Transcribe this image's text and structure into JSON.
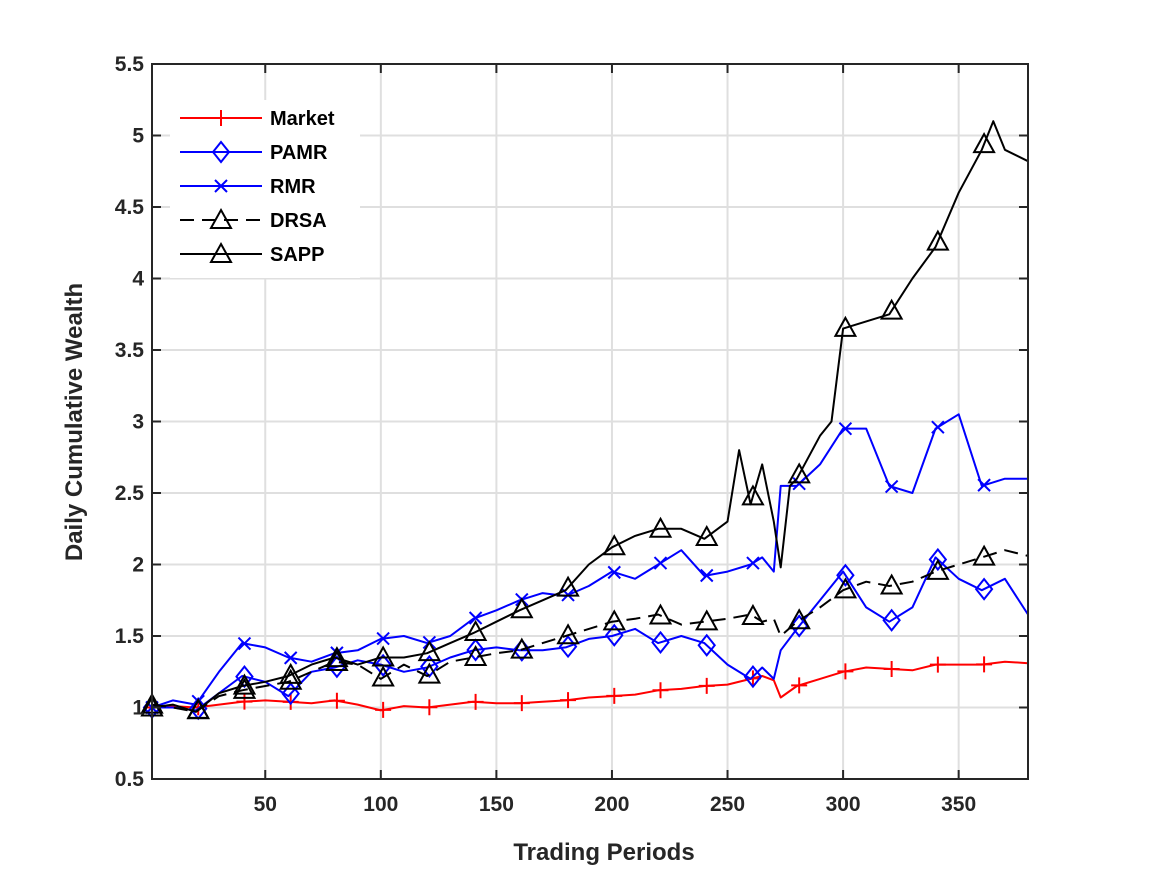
{
  "chart_data": {
    "type": "line",
    "title": "",
    "xlabel": "Trading Periods",
    "ylabel": "Daily Cumulative Wealth",
    "xlim": [
      1,
      380
    ],
    "ylim": [
      0.5,
      5.5
    ],
    "xticks": [
      50,
      100,
      150,
      200,
      250,
      300,
      350
    ],
    "yticks": [
      0.5,
      1,
      1.5,
      2,
      2.5,
      3,
      3.5,
      4,
      4.5,
      5,
      5.5
    ],
    "grid": true,
    "legend_position": "top-left",
    "series": [
      {
        "name": "Market",
        "color": "#ff0000",
        "line_style": "solid",
        "marker": "plus",
        "x": [
          1,
          10,
          20,
          30,
          40,
          50,
          60,
          70,
          80,
          90,
          100,
          110,
          120,
          130,
          140,
          150,
          160,
          170,
          180,
          190,
          200,
          210,
          220,
          230,
          240,
          250,
          260,
          265,
          270,
          273,
          280,
          290,
          300,
          310,
          320,
          330,
          340,
          350,
          360,
          370,
          380
        ],
        "y": [
          1.0,
          1.01,
          1.0,
          1.02,
          1.04,
          1.05,
          1.04,
          1.03,
          1.05,
          1.02,
          0.98,
          1.01,
          1.0,
          1.02,
          1.04,
          1.03,
          1.03,
          1.04,
          1.05,
          1.07,
          1.08,
          1.09,
          1.12,
          1.13,
          1.15,
          1.16,
          1.2,
          1.22,
          1.19,
          1.07,
          1.15,
          1.2,
          1.25,
          1.28,
          1.27,
          1.26,
          1.3,
          1.3,
          1.3,
          1.32,
          1.31
        ],
        "marker_x": [
          1,
          21,
          41,
          61,
          81,
          101,
          121,
          141,
          161,
          181,
          201,
          221,
          241,
          261,
          281,
          301,
          321,
          341,
          361
        ]
      },
      {
        "name": "PAMR",
        "color": "#0000ff",
        "line_style": "solid",
        "marker": "diamond",
        "x": [
          1,
          10,
          20,
          30,
          40,
          50,
          60,
          70,
          80,
          90,
          100,
          110,
          120,
          130,
          140,
          150,
          160,
          170,
          180,
          190,
          200,
          210,
          220,
          230,
          240,
          250,
          260,
          265,
          270,
          273,
          280,
          290,
          300,
          310,
          320,
          330,
          340,
          350,
          360,
          370,
          380
        ],
        "y": [
          1.0,
          1.0,
          0.98,
          1.1,
          1.22,
          1.18,
          1.08,
          1.25,
          1.28,
          1.33,
          1.3,
          1.25,
          1.28,
          1.35,
          1.4,
          1.42,
          1.4,
          1.4,
          1.42,
          1.48,
          1.5,
          1.55,
          1.45,
          1.5,
          1.45,
          1.3,
          1.2,
          1.28,
          1.2,
          1.4,
          1.55,
          1.75,
          1.95,
          1.7,
          1.6,
          1.7,
          2.05,
          1.9,
          1.82,
          1.9,
          1.65
        ],
        "marker_x": [
          1,
          21,
          41,
          61,
          81,
          101,
          121,
          141,
          161,
          181,
          201,
          221,
          241,
          261,
          281,
          301,
          321,
          341,
          361
        ]
      },
      {
        "name": "RMR",
        "color": "#0000ff",
        "line_style": "solid",
        "marker": "x",
        "x": [
          1,
          10,
          20,
          30,
          40,
          50,
          60,
          70,
          80,
          90,
          100,
          110,
          120,
          130,
          140,
          150,
          160,
          170,
          180,
          190,
          200,
          210,
          220,
          230,
          240,
          250,
          260,
          265,
          270,
          273,
          280,
          290,
          300,
          310,
          320,
          330,
          340,
          350,
          360,
          370,
          380
        ],
        "y": [
          1.0,
          1.05,
          1.02,
          1.25,
          1.45,
          1.42,
          1.35,
          1.32,
          1.38,
          1.4,
          1.48,
          1.5,
          1.45,
          1.5,
          1.62,
          1.68,
          1.75,
          1.8,
          1.78,
          1.85,
          1.95,
          1.9,
          2.0,
          2.1,
          1.92,
          1.95,
          2.0,
          2.05,
          1.95,
          2.55,
          2.55,
          2.7,
          2.95,
          2.95,
          2.55,
          2.5,
          2.95,
          3.05,
          2.55,
          2.6,
          2.6
        ],
        "marker_x": [
          1,
          21,
          41,
          61,
          81,
          101,
          121,
          141,
          161,
          181,
          201,
          221,
          241,
          261,
          281,
          301,
          321,
          341,
          361
        ]
      },
      {
        "name": "DRSA",
        "color": "#000000",
        "line_style": "dashed",
        "marker": "triangle",
        "x": [
          1,
          10,
          20,
          30,
          40,
          50,
          60,
          70,
          80,
          90,
          100,
          110,
          120,
          130,
          140,
          150,
          160,
          170,
          180,
          190,
          200,
          210,
          220,
          230,
          240,
          250,
          260,
          265,
          270,
          273,
          280,
          290,
          300,
          310,
          320,
          330,
          340,
          350,
          360,
          370,
          380
        ],
        "y": [
          1.02,
          1.0,
          0.97,
          1.08,
          1.12,
          1.15,
          1.18,
          1.25,
          1.32,
          1.3,
          1.2,
          1.3,
          1.22,
          1.32,
          1.35,
          1.38,
          1.4,
          1.45,
          1.5,
          1.55,
          1.6,
          1.62,
          1.65,
          1.58,
          1.6,
          1.62,
          1.65,
          1.6,
          1.62,
          1.5,
          1.6,
          1.7,
          1.82,
          1.88,
          1.85,
          1.88,
          1.95,
          2.0,
          2.05,
          2.1,
          2.06
        ],
        "marker_x": [
          1,
          21,
          41,
          61,
          81,
          101,
          121,
          141,
          161,
          181,
          201,
          221,
          241,
          261,
          281,
          301,
          321,
          341,
          361
        ]
      },
      {
        "name": "SAPP",
        "color": "#000000",
        "line_style": "solid",
        "marker": "triangle",
        "x": [
          1,
          10,
          20,
          30,
          40,
          50,
          60,
          70,
          80,
          90,
          100,
          110,
          120,
          130,
          140,
          150,
          160,
          170,
          180,
          190,
          200,
          210,
          220,
          230,
          240,
          250,
          255,
          260,
          265,
          270,
          273,
          277,
          280,
          290,
          295,
          300,
          310,
          320,
          330,
          340,
          350,
          360,
          365,
          370,
          380
        ],
        "y": [
          1.0,
          1.02,
          0.97,
          1.1,
          1.15,
          1.18,
          1.22,
          1.3,
          1.35,
          1.3,
          1.35,
          1.35,
          1.38,
          1.45,
          1.52,
          1.6,
          1.68,
          1.75,
          1.82,
          2.0,
          2.12,
          2.2,
          2.25,
          2.25,
          2.18,
          2.3,
          2.8,
          2.42,
          2.7,
          2.3,
          1.98,
          2.55,
          2.6,
          2.9,
          3.0,
          3.65,
          3.7,
          3.75,
          4.0,
          4.22,
          4.6,
          4.9,
          5.1,
          4.9,
          4.82
        ],
        "marker_x": [
          1,
          21,
          41,
          61,
          81,
          101,
          121,
          141,
          161,
          181,
          201,
          221,
          241,
          261,
          281,
          301,
          321,
          341,
          361
        ]
      }
    ]
  }
}
